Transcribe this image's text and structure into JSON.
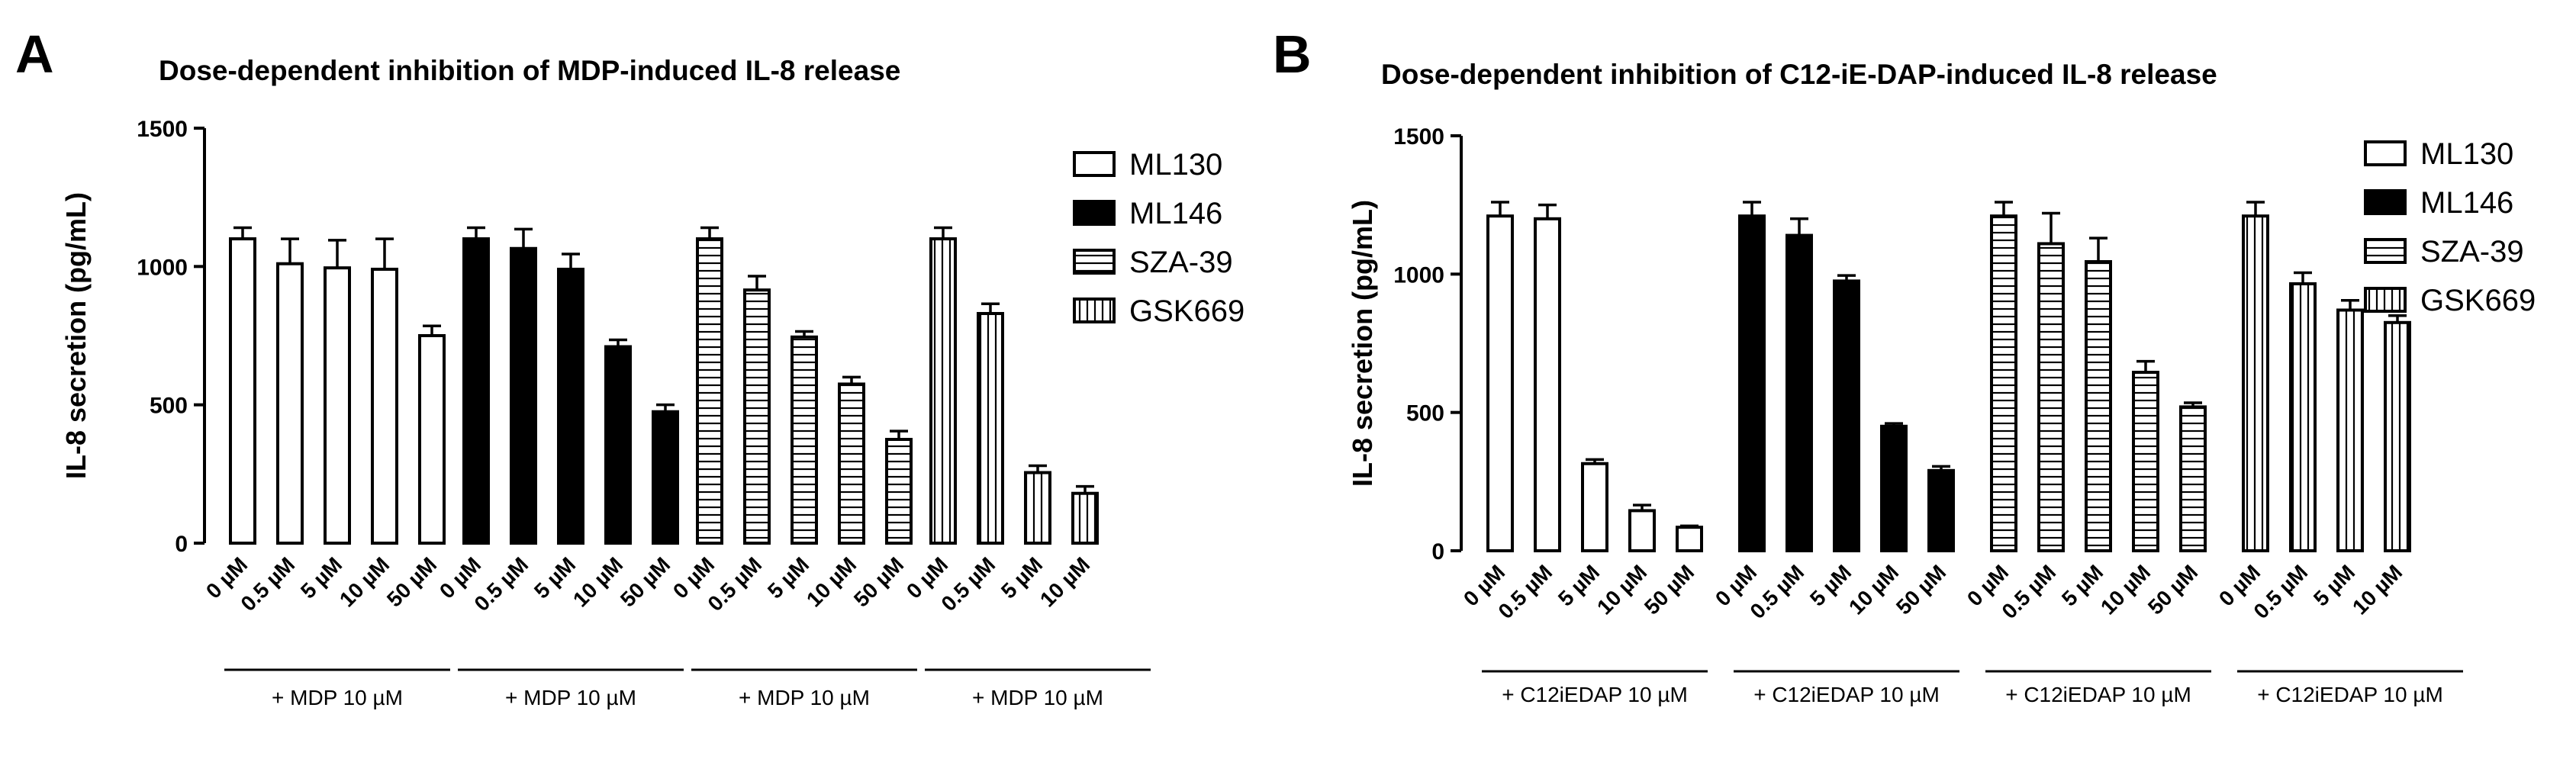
{
  "chart_data": [
    {
      "panel": "A",
      "type": "bar",
      "title": "Dose-dependent inhibition of MDP-induced IL-8 release",
      "ylabel": "IL-8 secretion (pg/mL)",
      "xlabel": "",
      "ylim": [
        0,
        1500
      ],
      "yticks": [
        "0",
        "500",
        "1000",
        "1500"
      ],
      "legend": [
        "ML130",
        "ML146",
        "SZA-39",
        "GSK669"
      ],
      "legend_position": "top-right",
      "groups": [
        {
          "series": "ML130",
          "label": "+ MDP 10 µM",
          "categories": [
            "0 µM",
            "0.5 µM",
            "5 µM",
            "10 µM",
            "50 µM"
          ],
          "values": [
            1100,
            1010,
            995,
            990,
            750
          ],
          "errors": [
            40,
            90,
            100,
            110,
            35
          ]
        },
        {
          "series": "ML146",
          "label": "+ MDP 10 µM",
          "categories": [
            "0 µM",
            "0.5 µM",
            "5 µM",
            "10 µM",
            "50 µM"
          ],
          "values": [
            1100,
            1065,
            990,
            710,
            475
          ],
          "errors": [
            40,
            70,
            55,
            25,
            25
          ]
        },
        {
          "series": "SZA-39",
          "label": "+ MDP 10 µM",
          "categories": [
            "0 µM",
            "0.5 µM",
            "5 µM",
            "10 µM",
            "50 µM"
          ],
          "values": [
            1100,
            915,
            745,
            575,
            375
          ],
          "errors": [
            40,
            50,
            20,
            25,
            30
          ]
        },
        {
          "series": "GSK669",
          "label": "+ MDP 10 µM",
          "categories": [
            "0 µM",
            "0.5 µM",
            "5 µM",
            "10 µM"
          ],
          "values": [
            1100,
            830,
            255,
            180
          ],
          "errors": [
            40,
            35,
            25,
            25
          ]
        }
      ]
    },
    {
      "panel": "B",
      "type": "bar",
      "title": "Dose-dependent inhibition of C12-iE-DAP-induced IL-8 release",
      "ylabel": "IL-8 secretion (pg/mL)",
      "xlabel": "",
      "ylim": [
        0,
        1500
      ],
      "yticks": [
        "0",
        "500",
        "1000",
        "1500"
      ],
      "legend": [
        "ML130",
        "ML146",
        "SZA-39",
        "GSK669"
      ],
      "legend_position": "top-right",
      "groups": [
        {
          "series": "ML130",
          "label": "+ C12iEDAP 10 µM",
          "categories": [
            "0 µM",
            "0.5 µM",
            "5 µM",
            "10 µM",
            "50 µM"
          ],
          "values": [
            1210,
            1200,
            315,
            145,
            85
          ],
          "errors": [
            50,
            50,
            15,
            20,
            5
          ]
        },
        {
          "series": "ML146",
          "label": "+ C12iEDAP 10 µM",
          "categories": [
            "0 µM",
            "0.5 µM",
            "5 µM",
            "10 µM",
            "50 µM"
          ],
          "values": [
            1210,
            1140,
            975,
            450,
            290
          ],
          "errors": [
            50,
            60,
            20,
            10,
            15
          ]
        },
        {
          "series": "SZA-39",
          "label": "+ C12iEDAP 10 µM",
          "categories": [
            "0 µM",
            "0.5 µM",
            "5 µM",
            "10 µM",
            "50 µM"
          ],
          "values": [
            1210,
            1110,
            1045,
            645,
            520
          ],
          "errors": [
            50,
            110,
            85,
            40,
            15
          ]
        },
        {
          "series": "GSK669",
          "label": "+ C12iEDAP 10 µM",
          "categories": [
            "0 µM",
            "0.5 µM",
            "5 µM",
            "10 µM"
          ],
          "values": [
            1210,
            965,
            870,
            825
          ],
          "errors": [
            50,
            40,
            35,
            25
          ]
        }
      ]
    }
  ]
}
